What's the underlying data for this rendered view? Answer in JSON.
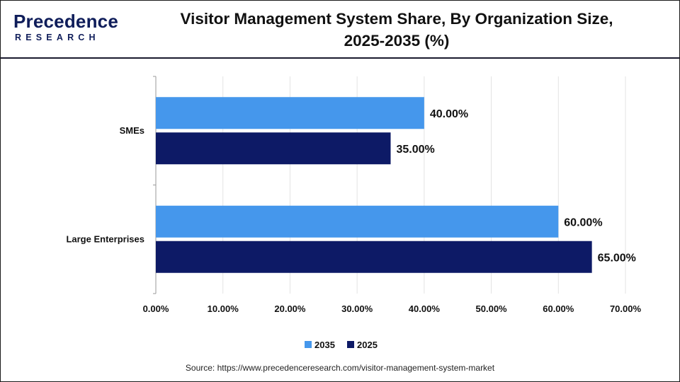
{
  "brand": {
    "logo_word": "Precedence",
    "logo_sub": "RESEARCH"
  },
  "title": {
    "line1": "Visitor Management System Share, By Organization Size,",
    "line2": "2025-2035 (%)"
  },
  "source": "Source: https://www.precedenceresearch.com/visitor-management-system-market",
  "chart_data": {
    "type": "bar",
    "orientation": "horizontal",
    "title": "Visitor Management System Share, By Organization Size, 2025-2035 (%)",
    "categories": [
      "SMEs",
      "Large Enterprises"
    ],
    "series": [
      {
        "name": "2035",
        "color": "#4597ec",
        "values": [
          40,
          60
        ],
        "labels": [
          "40.00%",
          "60.00%"
        ]
      },
      {
        "name": "2025",
        "color": "#0d1a66",
        "values": [
          35,
          65
        ],
        "labels": [
          "35.00%",
          "65.00%"
        ]
      }
    ],
    "xlim": [
      0,
      70
    ],
    "xticks": [
      0,
      10,
      20,
      30,
      40,
      50,
      60,
      70
    ],
    "xtick_labels": [
      "0.00%",
      "10.00%",
      "20.00%",
      "30.00%",
      "40.00%",
      "50.00%",
      "60.00%",
      "70.00%"
    ],
    "xlabel": "",
    "ylabel": "",
    "grid": true,
    "legend": {
      "position": "bottom-center",
      "entries": [
        "2035",
        "2025"
      ]
    }
  }
}
